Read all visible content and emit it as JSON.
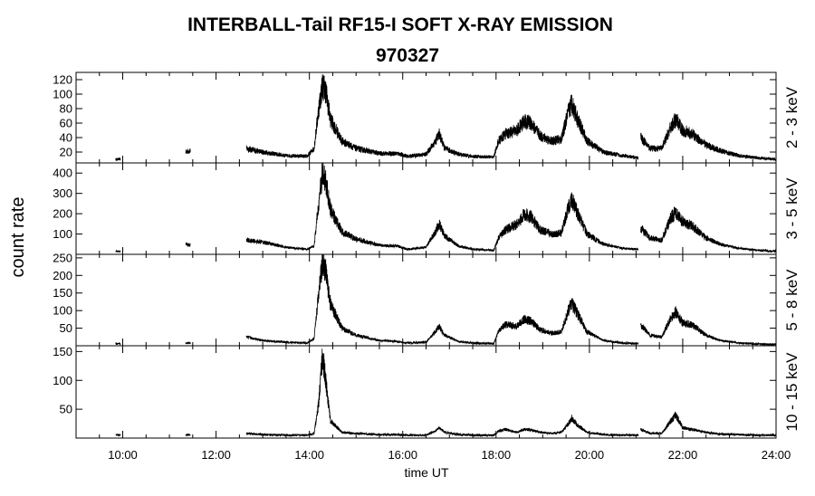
{
  "chart_data": {
    "type": "line",
    "title": "INTERBALL-Tail RF15-I SOFT X-RAY EMISSION",
    "subtitle": "970327",
    "xlabel": "time UT",
    "ylabel": "count rate",
    "xlim": [
      9,
      24
    ],
    "x_ticks": [
      10,
      12,
      14,
      16,
      18,
      20,
      22,
      24
    ],
    "x_tick_labels": [
      "10:00",
      "12:00",
      "14:00",
      "16:00",
      "18:00",
      "20:00",
      "22:00",
      "24:00"
    ],
    "panels": [
      {
        "label": "2 - 3 keV",
        "ylim": [
          5,
          130
        ],
        "y_ticks": [
          20,
          40,
          60,
          80,
          100,
          120
        ],
        "y_tick_labels": [
          "20",
          "40",
          "60",
          "80",
          "100",
          "120"
        ],
        "points": [
          [
            9.85,
            10
          ],
          [
            9.95,
            10
          ],
          [
            11.35,
            20
          ],
          [
            11.45,
            22
          ],
          [
            12.65,
            25
          ],
          [
            13.0,
            20
          ],
          [
            13.5,
            15
          ],
          [
            13.95,
            14
          ],
          [
            14.1,
            25
          ],
          [
            14.2,
            80
          ],
          [
            14.28,
            112
          ],
          [
            14.35,
            105
          ],
          [
            14.45,
            65
          ],
          [
            14.7,
            35
          ],
          [
            15.0,
            25
          ],
          [
            15.5,
            18
          ],
          [
            15.9,
            18
          ],
          [
            16.1,
            14
          ],
          [
            16.5,
            17
          ],
          [
            16.7,
            35
          ],
          [
            16.78,
            45
          ],
          [
            16.9,
            25
          ],
          [
            17.2,
            17
          ],
          [
            17.5,
            14
          ],
          [
            17.95,
            13
          ],
          [
            18.05,
            35
          ],
          [
            18.2,
            45
          ],
          [
            18.45,
            50
          ],
          [
            18.6,
            62
          ],
          [
            18.75,
            60
          ],
          [
            18.95,
            42
          ],
          [
            19.2,
            35
          ],
          [
            19.4,
            38
          ],
          [
            19.55,
            75
          ],
          [
            19.62,
            88
          ],
          [
            19.75,
            65
          ],
          [
            19.95,
            35
          ],
          [
            20.3,
            20
          ],
          [
            20.7,
            15
          ],
          [
            21.05,
            12
          ]
        ],
        "points2": [
          [
            21.1,
            40
          ],
          [
            21.3,
            25
          ],
          [
            21.55,
            25
          ],
          [
            21.75,
            55
          ],
          [
            21.85,
            65
          ],
          [
            22.0,
            50
          ],
          [
            22.2,
            45
          ],
          [
            22.5,
            30
          ],
          [
            22.8,
            22
          ],
          [
            23.2,
            15
          ],
          [
            23.6,
            12
          ],
          [
            24.0,
            10
          ]
        ]
      },
      {
        "label": "3 - 5 keV",
        "ylim": [
          0,
          450
        ],
        "y_ticks": [
          100,
          200,
          300,
          400
        ],
        "y_tick_labels": [
          "100",
          "200",
          "300",
          "400"
        ],
        "points": [
          [
            9.85,
            15
          ],
          [
            9.95,
            15
          ],
          [
            11.35,
            50
          ],
          [
            11.45,
            45
          ],
          [
            12.65,
            70
          ],
          [
            13.0,
            60
          ],
          [
            13.5,
            35
          ],
          [
            13.95,
            25
          ],
          [
            14.1,
            40
          ],
          [
            14.2,
            250
          ],
          [
            14.28,
            400
          ],
          [
            14.35,
            360
          ],
          [
            14.45,
            220
          ],
          [
            14.7,
            110
          ],
          [
            15.0,
            75
          ],
          [
            15.5,
            45
          ],
          [
            15.9,
            40
          ],
          [
            16.1,
            25
          ],
          [
            16.5,
            35
          ],
          [
            16.7,
            110
          ],
          [
            16.78,
            150
          ],
          [
            16.9,
            90
          ],
          [
            17.2,
            40
          ],
          [
            17.5,
            25
          ],
          [
            17.95,
            20
          ],
          [
            18.05,
            80
          ],
          [
            18.2,
            120
          ],
          [
            18.45,
            150
          ],
          [
            18.6,
            195
          ],
          [
            18.75,
            185
          ],
          [
            18.95,
            120
          ],
          [
            19.2,
            100
          ],
          [
            19.4,
            105
          ],
          [
            19.55,
            230
          ],
          [
            19.62,
            270
          ],
          [
            19.75,
            200
          ],
          [
            19.95,
            100
          ],
          [
            20.3,
            50
          ],
          [
            20.7,
            30
          ],
          [
            21.05,
            25
          ]
        ],
        "points2": [
          [
            21.1,
            130
          ],
          [
            21.3,
            80
          ],
          [
            21.55,
            70
          ],
          [
            21.75,
            180
          ],
          [
            21.85,
            210
          ],
          [
            22.0,
            160
          ],
          [
            22.2,
            140
          ],
          [
            22.5,
            80
          ],
          [
            22.8,
            50
          ],
          [
            23.2,
            30
          ],
          [
            23.6,
            20
          ],
          [
            24.0,
            15
          ]
        ]
      },
      {
        "label": "5 - 8 keV",
        "ylim": [
          0,
          260
        ],
        "y_ticks": [
          50,
          100,
          150,
          200,
          250
        ],
        "y_tick_labels": [
          "50",
          "100",
          "150",
          "200",
          "250"
        ],
        "points": [
          [
            9.85,
            5
          ],
          [
            9.95,
            5
          ],
          [
            11.35,
            8
          ],
          [
            11.45,
            8
          ],
          [
            12.65,
            25
          ],
          [
            13.0,
            15
          ],
          [
            13.5,
            10
          ],
          [
            13.95,
            8
          ],
          [
            14.1,
            20
          ],
          [
            14.2,
            150
          ],
          [
            14.28,
            235
          ],
          [
            14.35,
            210
          ],
          [
            14.45,
            120
          ],
          [
            14.7,
            50
          ],
          [
            15.0,
            30
          ],
          [
            15.5,
            15
          ],
          [
            15.9,
            12
          ],
          [
            16.1,
            8
          ],
          [
            16.5,
            10
          ],
          [
            16.7,
            40
          ],
          [
            16.78,
            55
          ],
          [
            16.9,
            30
          ],
          [
            17.2,
            12
          ],
          [
            17.5,
            8
          ],
          [
            17.95,
            6
          ],
          [
            18.05,
            40
          ],
          [
            18.2,
            60
          ],
          [
            18.45,
            55
          ],
          [
            18.6,
            75
          ],
          [
            18.75,
            70
          ],
          [
            18.95,
            45
          ],
          [
            19.2,
            35
          ],
          [
            19.4,
            40
          ],
          [
            19.55,
            100
          ],
          [
            19.62,
            120
          ],
          [
            19.75,
            90
          ],
          [
            19.95,
            40
          ],
          [
            20.3,
            15
          ],
          [
            20.7,
            8
          ],
          [
            21.05,
            6
          ]
        ],
        "points2": [
          [
            21.1,
            60
          ],
          [
            21.3,
            30
          ],
          [
            21.55,
            25
          ],
          [
            21.75,
            80
          ],
          [
            21.85,
            95
          ],
          [
            22.0,
            65
          ],
          [
            22.2,
            60
          ],
          [
            22.5,
            30
          ],
          [
            22.8,
            15
          ],
          [
            23.2,
            8
          ],
          [
            23.6,
            5
          ],
          [
            24.0,
            4
          ]
        ]
      },
      {
        "label": "10 - 15 keV",
        "ylim": [
          0,
          160
        ],
        "y_ticks": [
          50,
          100,
          150
        ],
        "y_tick_labels": [
          "50",
          "100",
          "150"
        ],
        "points": [
          [
            9.85,
            5
          ],
          [
            9.95,
            5
          ],
          [
            11.35,
            5
          ],
          [
            11.45,
            5
          ],
          [
            12.65,
            8
          ],
          [
            13.0,
            6
          ],
          [
            13.5,
            5
          ],
          [
            13.95,
            5
          ],
          [
            14.1,
            8
          ],
          [
            14.2,
            60
          ],
          [
            14.28,
            145
          ],
          [
            14.35,
            100
          ],
          [
            14.45,
            30
          ],
          [
            14.7,
            10
          ],
          [
            15.0,
            8
          ],
          [
            15.5,
            6
          ],
          [
            15.9,
            6
          ],
          [
            16.1,
            5
          ],
          [
            16.5,
            5
          ],
          [
            16.7,
            12
          ],
          [
            16.78,
            18
          ],
          [
            16.9,
            10
          ],
          [
            17.2,
            6
          ],
          [
            17.5,
            5
          ],
          [
            17.95,
            5
          ],
          [
            18.05,
            12
          ],
          [
            18.2,
            15
          ],
          [
            18.45,
            10
          ],
          [
            18.6,
            15
          ],
          [
            18.75,
            14
          ],
          [
            18.95,
            10
          ],
          [
            19.2,
            8
          ],
          [
            19.4,
            10
          ],
          [
            19.55,
            25
          ],
          [
            19.62,
            35
          ],
          [
            19.75,
            22
          ],
          [
            19.95,
            10
          ],
          [
            20.3,
            6
          ],
          [
            20.7,
            5
          ],
          [
            21.05,
            5
          ]
        ],
        "points2": [
          [
            21.1,
            15
          ],
          [
            21.3,
            8
          ],
          [
            21.55,
            8
          ],
          [
            21.75,
            30
          ],
          [
            21.85,
            40
          ],
          [
            22.0,
            18
          ],
          [
            22.2,
            15
          ],
          [
            22.5,
            10
          ],
          [
            22.8,
            7
          ],
          [
            23.2,
            6
          ],
          [
            23.6,
            5
          ],
          [
            24.0,
            5
          ]
        ]
      }
    ]
  }
}
